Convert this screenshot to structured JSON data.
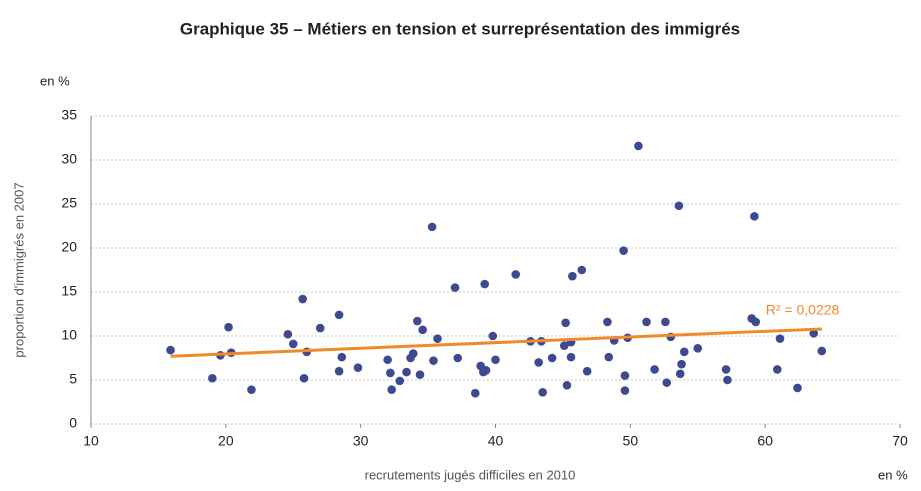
{
  "chart_data": {
    "type": "scatter",
    "title": "Graphique 35 – Métiers en tension et surreprésentation des immigrés",
    "y_unit": "en %",
    "x_unit": "en %",
    "xlabel": "recrutements jugés difficiles en 2010",
    "ylabel": "proportion d'immigrés en 2007",
    "color": "#3d4a8f",
    "x": [
      15.9,
      19.0,
      19.6,
      20.2,
      20.4,
      21.9,
      24.6,
      25.0,
      25.7,
      25.8,
      26.0,
      27.0,
      28.4,
      28.6,
      28.4,
      29.8,
      32.0,
      32.2,
      32.3,
      32.9,
      33.4,
      33.7,
      33.9,
      34.2,
      34.4,
      34.6,
      35.3,
      35.4,
      35.7,
      37.0,
      37.2,
      38.5,
      38.9,
      39.1,
      39.2,
      39.3,
      39.8,
      40.0,
      41.5,
      42.6,
      43.2,
      43.5,
      43.4,
      44.2,
      45.1,
      45.2,
      45.3,
      45.6,
      45.6,
      45.7,
      46.4,
      46.8,
      48.3,
      48.4,
      48.8,
      49.5,
      49.6,
      49.6,
      49.8,
      50.6,
      51.2,
      51.8,
      52.6,
      52.7,
      53.0,
      53.6,
      53.7,
      53.8,
      54.0,
      55.0,
      57.1,
      57.2,
      59.0,
      59.2,
      59.3,
      61.1,
      60.9,
      62.4,
      63.6,
      64.2
    ],
    "values": [
      8.4,
      5.2,
      7.8,
      11.0,
      8.1,
      3.9,
      10.2,
      9.1,
      14.2,
      5.2,
      8.2,
      10.9,
      12.4,
      7.6,
      6.0,
      6.4,
      7.3,
      5.8,
      3.9,
      4.9,
      5.9,
      7.5,
      8.0,
      11.7,
      5.6,
      10.7,
      22.4,
      7.2,
      9.7,
      15.5,
      7.5,
      3.5,
      6.6,
      5.9,
      15.9,
      6.1,
      10.0,
      7.3,
      17.0,
      9.4,
      7.0,
      3.6,
      9.4,
      7.5,
      8.9,
      11.5,
      4.4,
      7.6,
      9.3,
      16.8,
      17.5,
      6.0,
      11.6,
      7.6,
      9.5,
      19.7,
      5.5,
      3.8,
      9.8,
      31.6,
      11.6,
      6.2,
      11.6,
      4.7,
      9.9,
      24.8,
      5.7,
      6.8,
      8.2,
      8.6,
      6.2,
      5.0,
      12.0,
      23.6,
      11.6,
      9.7,
      6.2,
      4.1,
      10.3,
      8.3
    ],
    "trendline": {
      "x": [
        15.9,
        64.2
      ],
      "y": [
        7.7,
        10.8
      ],
      "color": "#f08a2c",
      "label": "R² = 0,0228"
    },
    "xlim": [
      10,
      70
    ],
    "xticks": [
      10,
      20,
      30,
      40,
      50,
      60,
      70
    ],
    "ylim": [
      0,
      35
    ],
    "yticks": [
      0,
      5,
      10,
      15,
      20,
      25,
      30,
      35
    ],
    "grid": true
  }
}
